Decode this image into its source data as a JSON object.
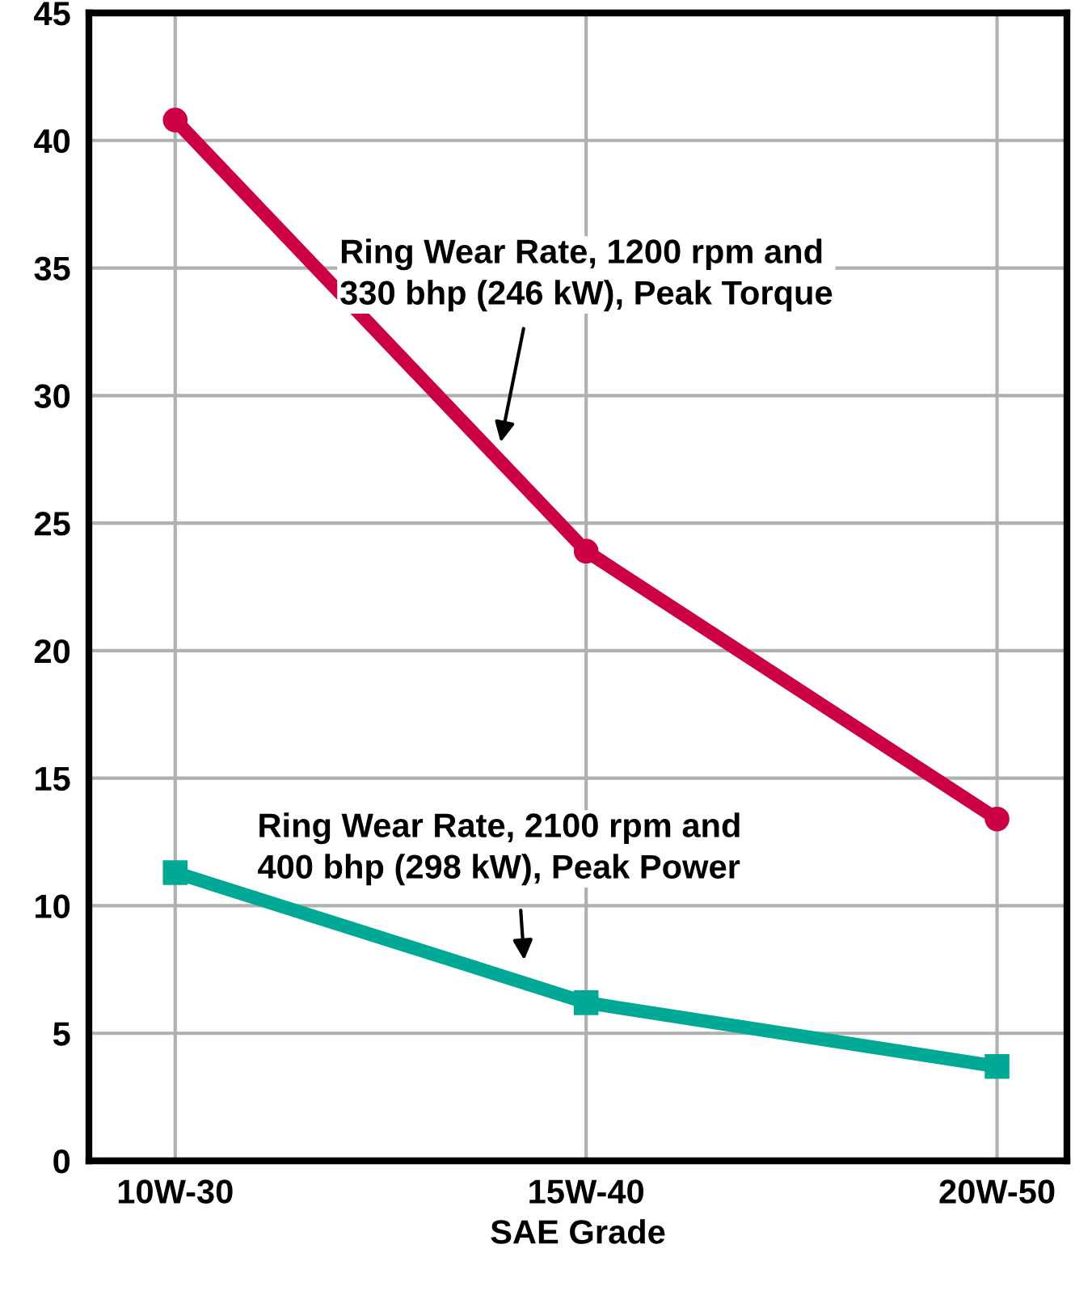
{
  "chart_data": {
    "type": "line",
    "xlabel": "SAE Grade",
    "categories": [
      "10W-30",
      "15W-40",
      "20W-50"
    ],
    "series": [
      {
        "color": "#cc0044",
        "values": [
          40.8,
          23.9,
          13.4
        ],
        "marker": "circle"
      },
      {
        "color": "#00a896",
        "values": [
          11.3,
          6.2,
          3.7
        ],
        "marker": "square"
      }
    ],
    "annotations": [
      "Ring Wear Rate, 1200 rpm and\n330 bhp (246 kW), Peak Torque",
      "Ring Wear Rate, 2100 rpm and\n400 bhp (298 kW), Peak Power"
    ],
    "ylim": [
      0,
      45
    ],
    "yticks": [
      0,
      5,
      10,
      15,
      20,
      25,
      30,
      35,
      40,
      45
    ],
    "grid": true,
    "legend": false,
    "line_style": "solid"
  }
}
